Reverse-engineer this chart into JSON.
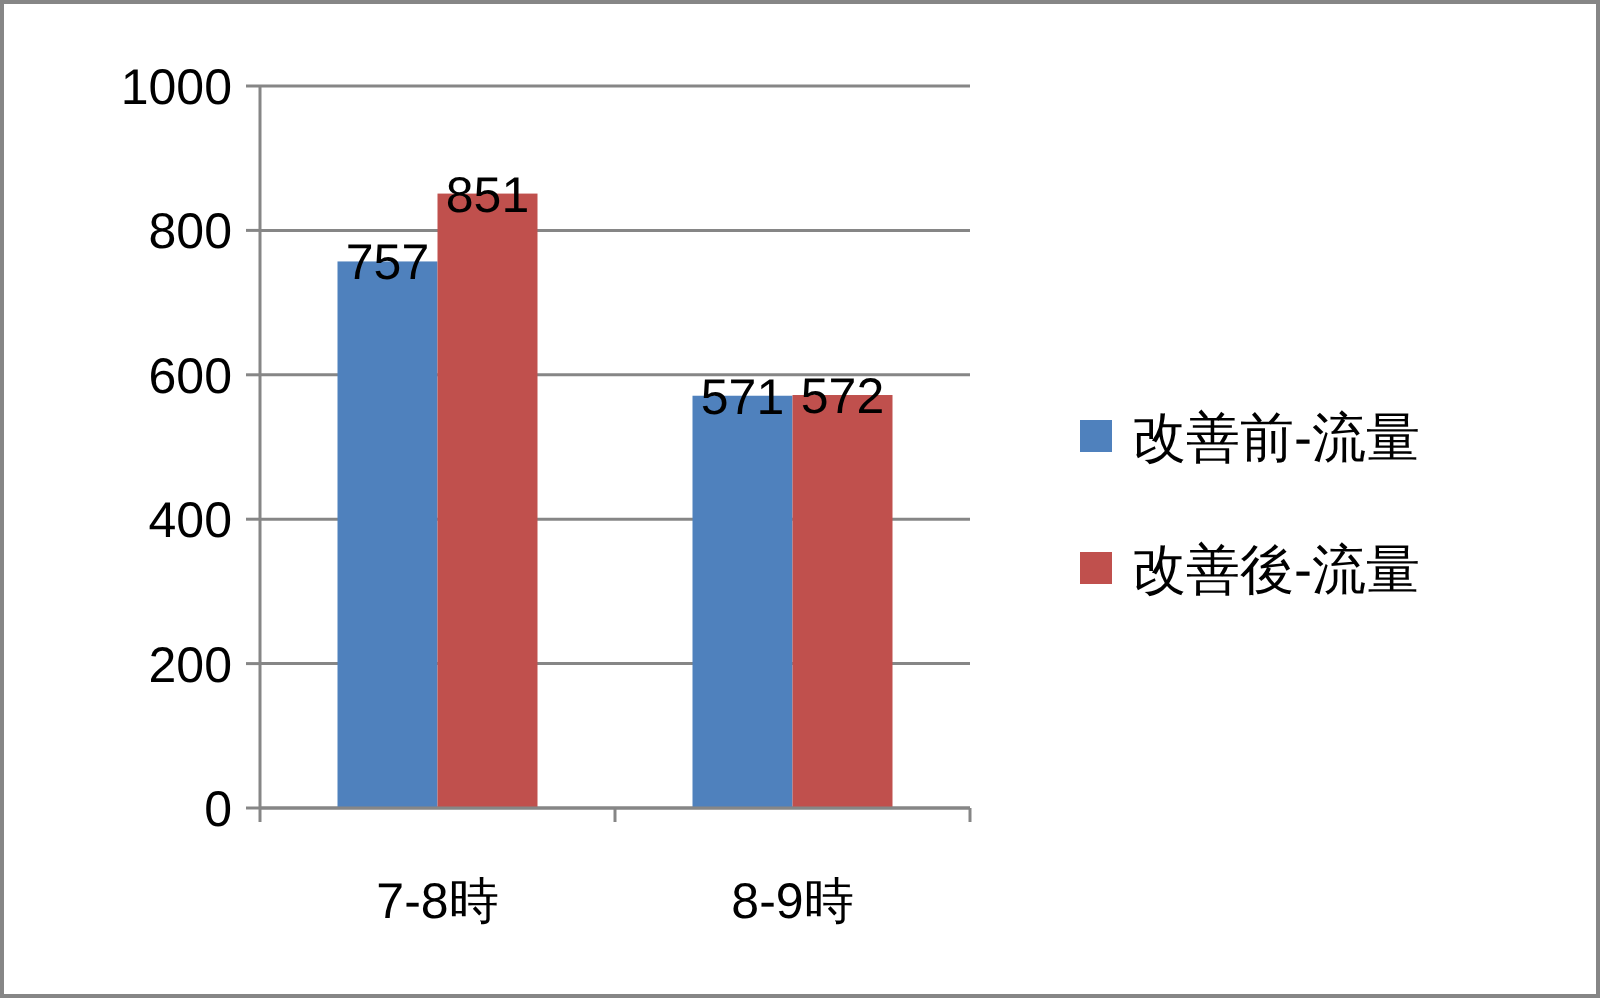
{
  "chart_data": {
    "type": "bar",
    "categories": [
      "7-8時",
      "8-9時"
    ],
    "series": [
      {
        "name": "改善前-流量",
        "color": "#4f81bd",
        "values": [
          757,
          571
        ]
      },
      {
        "name": "改善後-流量",
        "color": "#c0504d",
        "values": [
          851,
          572
        ]
      }
    ],
    "ylim": [
      0,
      1000
    ],
    "yticks": [
      0,
      200,
      400,
      600,
      800,
      1000
    ],
    "grid": "y",
    "legend": "right",
    "data_labels": true
  }
}
